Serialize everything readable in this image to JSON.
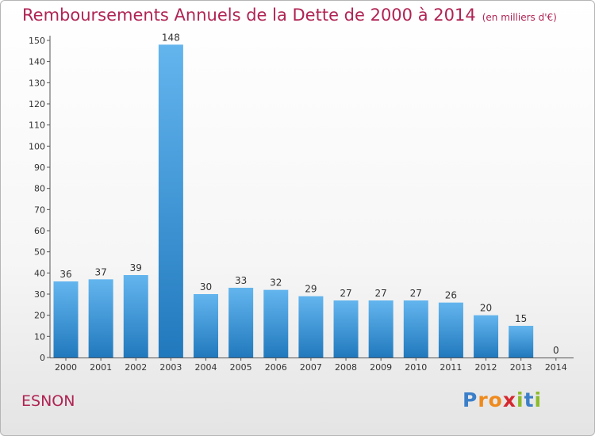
{
  "title": "Remboursements Annuels de la Dette de 2000 à 2014",
  "unit": "(en milliers d'€)",
  "commune": "ESNON",
  "logo": {
    "letters": [
      "P",
      "r",
      "o",
      "x",
      "i",
      "t",
      "i"
    ],
    "colors": [
      "#3c7fc9",
      "#ef8a1c",
      "#ef8a1c",
      "#d5282e",
      "#8dbb2b",
      "#3c7fc9",
      "#8dbb2b"
    ]
  },
  "colors": {
    "accent": "#b02354",
    "bar_light": "#63b5ee",
    "bar_dark": "#2179bd"
  },
  "chart_data": {
    "type": "bar",
    "categories": [
      "2000",
      "2001",
      "2002",
      "2003",
      "2004",
      "2005",
      "2006",
      "2007",
      "2008",
      "2009",
      "2010",
      "2011",
      "2012",
      "2013",
      "2014"
    ],
    "values": [
      36,
      37,
      39,
      148,
      30,
      33,
      32,
      29,
      27,
      27,
      27,
      26,
      20,
      15,
      0
    ],
    "ylim": [
      0,
      150
    ],
    "yticks": [
      0,
      10,
      20,
      30,
      40,
      50,
      60,
      70,
      80,
      90,
      100,
      110,
      120,
      130,
      140,
      150
    ],
    "grid": false
  }
}
